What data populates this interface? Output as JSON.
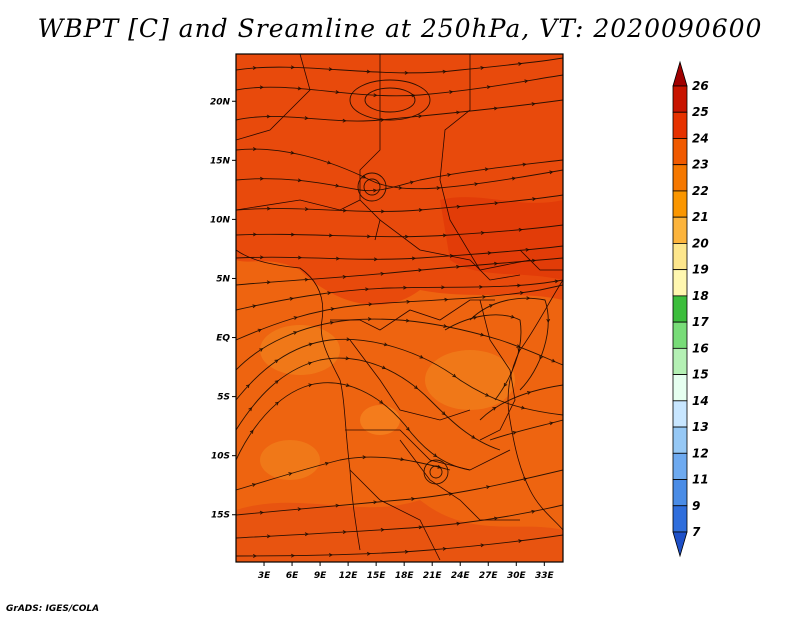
{
  "title": "WBPT [C] and Sreamline at 250hPa, VT: 2020090600",
  "credit": "GrADS: IGES/COLA",
  "map": {
    "lat_labels": [
      "20N",
      "15N",
      "10N",
      "5N",
      "EQ",
      "5S",
      "10S",
      "15S"
    ],
    "lon_labels": [
      "3E",
      "6E",
      "9E",
      "12E",
      "15E",
      "18E",
      "21E",
      "24E",
      "27E",
      "30E",
      "33E"
    ],
    "extent": {
      "lon_min": 0,
      "lon_max": 35,
      "lat_min": -19,
      "lat_max": 24
    }
  },
  "colorbar": {
    "labels": [
      "26",
      "25",
      "24",
      "23",
      "22",
      "21",
      "20",
      "19",
      "18",
      "17",
      "16",
      "15",
      "14",
      "13",
      "12",
      "11",
      "9",
      "7"
    ],
    "colors": [
      "#a00000",
      "#c81400",
      "#e63200",
      "#f05a00",
      "#f57800",
      "#fa9600",
      "#fcb43c",
      "#fde68c",
      "#fff7b0",
      "#3cbe3c",
      "#78dc78",
      "#b4f0b4",
      "#e6fff0",
      "#c8e6ff",
      "#96c8f5",
      "#6eaaf0",
      "#4a8ce6",
      "#2f6edc",
      "#1e50c8"
    ]
  }
}
